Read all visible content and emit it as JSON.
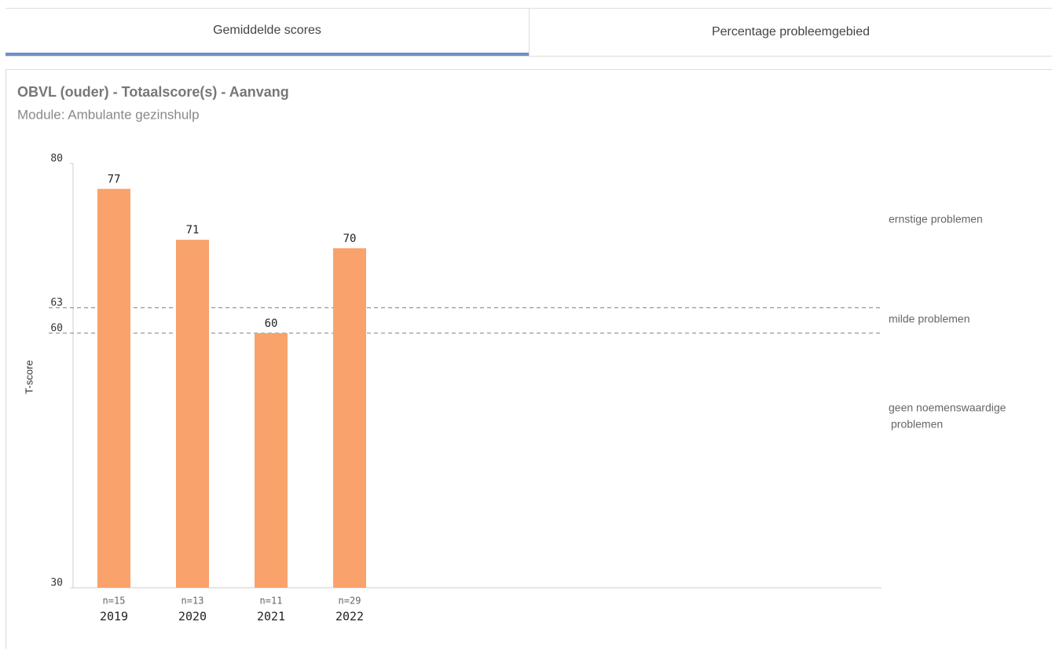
{
  "tabs": [
    "Gemiddelde scores",
    "Percentage probleemgebied"
  ],
  "chart_data": {
    "type": "bar",
    "title": "OBVL (ouder) - Totaalscore(s) - Aanvang",
    "subtitle": "Module: Ambulante gezinshulp",
    "y_label": "T-score",
    "categories": [
      "2019",
      "2020",
      "2021",
      "2022"
    ],
    "sample_sizes": [
      "n=15",
      "n=13",
      "n=11",
      "n=29"
    ],
    "values": [
      77,
      71,
      60,
      70
    ],
    "color": "#f9a26c",
    "ylim": [
      30,
      80
    ],
    "yticks": [
      30,
      60,
      63,
      80
    ],
    "reference_lines": [
      63,
      60
    ],
    "zones": [
      [
        "ernstige problemen"
      ],
      [
        "milde problemen"
      ],
      [
        "geen noemenswaardige",
        "problemen"
      ]
    ]
  }
}
